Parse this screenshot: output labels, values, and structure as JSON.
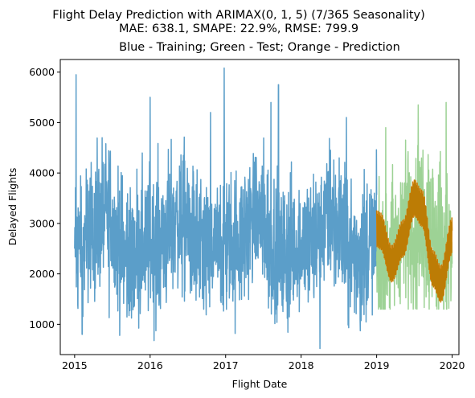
{
  "chart_data": {
    "type": "line",
    "title_line1": "Flight Delay Prediction with ARIMAX(0, 1, 5) (7/365 Seasonality)",
    "title_line2": "MAE: 638.1, SMAPE: 22.9%, RMSE: 799.9",
    "subtitle": "Blue - Training; Green - Test; Orange - Prediction",
    "xlabel": "Flight Date",
    "ylabel": "Delayed Flights",
    "xlim": [
      2014.81,
      2020.09
    ],
    "ylim": [
      400,
      6250
    ],
    "x_ticks": [
      2015,
      2016,
      2017,
      2018,
      2019,
      2020
    ],
    "x_tick_labels": [
      "2015",
      "2016",
      "2017",
      "2018",
      "2019",
      "2020"
    ],
    "y_ticks": [
      1000,
      2000,
      3000,
      4000,
      5000,
      6000
    ],
    "y_tick_labels": [
      "1000",
      "2000",
      "3000",
      "4000",
      "5000",
      "6000"
    ],
    "grid": false,
    "colors": {
      "training": "#5b9ec9",
      "test": "#98d08f",
      "prediction": "#ff7f0e",
      "overlap": "#8f7a00"
    },
    "series": [
      {
        "role": "training",
        "x_range": [
          2015.0,
          2019.0
        ],
        "color": "#5b9ec9",
        "summary": {
          "min": 520,
          "max": 6080,
          "typical_low": 1500,
          "typical_high": 4200
        },
        "key_points": [
          {
            "x": 2015.0,
            "y": 2500
          },
          {
            "x": 2015.02,
            "y": 5950
          },
          {
            "x": 2015.1,
            "y": 800
          },
          {
            "x": 2016.0,
            "y": 5500
          },
          {
            "x": 2016.8,
            "y": 5200
          },
          {
            "x": 2016.98,
            "y": 6080
          },
          {
            "x": 2017.6,
            "y": 5400
          },
          {
            "x": 2017.7,
            "y": 5750
          },
          {
            "x": 2018.25,
            "y": 520
          },
          {
            "x": 2018.6,
            "y": 5100
          },
          {
            "x": 2018.99,
            "y": 2300
          }
        ]
      },
      {
        "role": "test",
        "x_range": [
          2019.0,
          2020.0
        ],
        "color": "#98d08f",
        "summary": {
          "min": 1300,
          "max": 5400,
          "typical_low": 1800,
          "typical_high": 4200
        },
        "key_points": [
          {
            "x": 2019.0,
            "y": 2400
          },
          {
            "x": 2019.12,
            "y": 4900
          },
          {
            "x": 2019.55,
            "y": 5350
          },
          {
            "x": 2019.8,
            "y": 1300
          },
          {
            "x": 2019.92,
            "y": 5400
          },
          {
            "x": 2020.0,
            "y": 2800
          }
        ]
      },
      {
        "role": "prediction",
        "x_range": [
          2019.0,
          2020.0
        ],
        "color": "#ff7f0e",
        "summary": {
          "band_width": 300,
          "start": 2500,
          "end": 2700
        },
        "envelope": [
          {
            "x": 2019.0,
            "y": 2900
          },
          {
            "x": 2019.05,
            "y": 2850
          },
          {
            "x": 2019.2,
            "y": 2200
          },
          {
            "x": 2019.35,
            "y": 2700
          },
          {
            "x": 2019.5,
            "y": 3500
          },
          {
            "x": 2019.6,
            "y": 3300
          },
          {
            "x": 2019.75,
            "y": 2100
          },
          {
            "x": 2019.85,
            "y": 1800
          },
          {
            "x": 2020.0,
            "y": 2750
          }
        ]
      }
    ]
  }
}
